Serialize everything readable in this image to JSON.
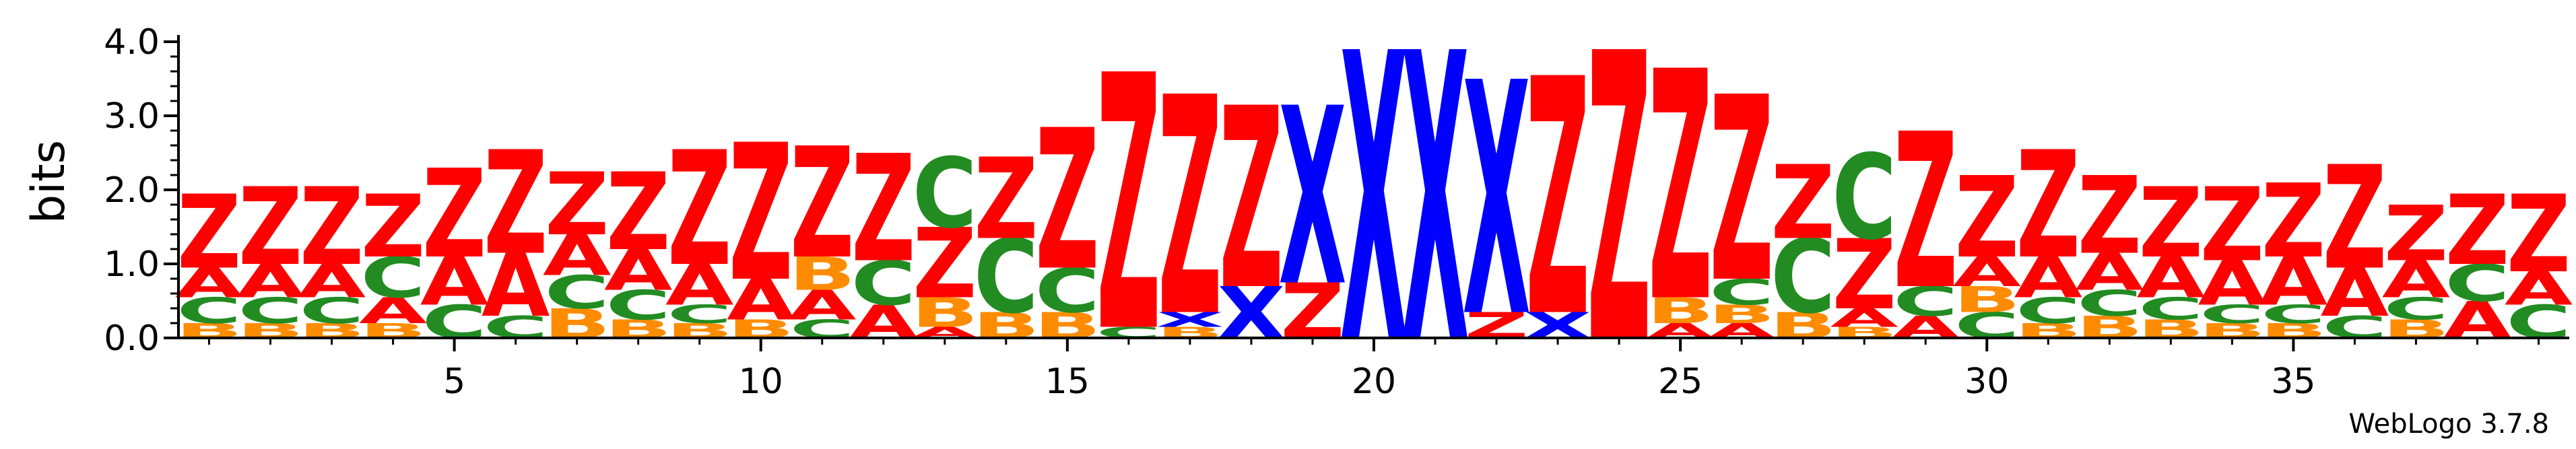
{
  "chart_data": {
    "type": "sequence-logo",
    "ylabel": "bits",
    "ylim": [
      0,
      4.0
    ],
    "ytick_labels": [
      "0.0",
      "1.0",
      "2.0",
      "3.0",
      "4.0"
    ],
    "yticks": [
      0,
      1,
      2,
      3,
      4
    ],
    "xtick_labels": [
      "5",
      "10",
      "15",
      "20",
      "25",
      "30",
      "35"
    ],
    "xticks": [
      5,
      10,
      15,
      20,
      25,
      30,
      35
    ],
    "num_positions": 39,
    "colors": {
      "A": "#ff0000",
      "Z": "#ff0000",
      "C": "#228b22",
      "B": "#ff8c00",
      "X": "#0000ff",
      "G": "#ff8c00",
      "T": "#800080"
    },
    "positions": [
      {
        "pos": 1,
        "stack": [
          [
            "B",
            0.2
          ],
          [
            "C",
            0.35
          ],
          [
            "A",
            0.4
          ],
          [
            "Z",
            1.0
          ]
        ]
      },
      {
        "pos": 2,
        "stack": [
          [
            "B",
            0.2
          ],
          [
            "C",
            0.35
          ],
          [
            "A",
            0.45
          ],
          [
            "Z",
            1.05
          ]
        ]
      },
      {
        "pos": 3,
        "stack": [
          [
            "B",
            0.2
          ],
          [
            "C",
            0.35
          ],
          [
            "A",
            0.45
          ],
          [
            "Z",
            1.05
          ]
        ]
      },
      {
        "pos": 4,
        "stack": [
          [
            "B",
            0.2
          ],
          [
            "A",
            0.35
          ],
          [
            "C",
            0.55
          ],
          [
            "Z",
            0.85
          ]
        ]
      },
      {
        "pos": 5,
        "stack": [
          [
            "C",
            0.45
          ],
          [
            "A",
            0.65
          ],
          [
            "Z",
            1.2
          ]
        ]
      },
      {
        "pos": 6,
        "stack": [
          [
            "C",
            0.3
          ],
          [
            "A",
            0.85
          ],
          [
            "Z",
            1.4
          ]
        ]
      },
      {
        "pos": 7,
        "stack": [
          [
            "B",
            0.4
          ],
          [
            "C",
            0.45
          ],
          [
            "A",
            0.55
          ],
          [
            "Z",
            0.85
          ]
        ]
      },
      {
        "pos": 8,
        "stack": [
          [
            "B",
            0.25
          ],
          [
            "C",
            0.4
          ],
          [
            "A",
            0.55
          ],
          [
            "Z",
            1.05
          ]
        ]
      },
      {
        "pos": 9,
        "stack": [
          [
            "B",
            0.2
          ],
          [
            "C",
            0.25
          ],
          [
            "A",
            0.55
          ],
          [
            "Z",
            1.55
          ]
        ]
      },
      {
        "pos": 10,
        "stack": [
          [
            "B",
            0.25
          ],
          [
            "A",
            0.55
          ],
          [
            "Z",
            1.85
          ]
        ]
      },
      {
        "pos": 11,
        "stack": [
          [
            "C",
            0.25
          ],
          [
            "A",
            0.4
          ],
          [
            "B",
            0.45
          ],
          [
            "Z",
            1.5
          ]
        ]
      },
      {
        "pos": 12,
        "stack": [
          [
            "A",
            0.45
          ],
          [
            "C",
            0.6
          ],
          [
            "Z",
            1.45
          ]
        ]
      },
      {
        "pos": 13,
        "stack": [
          [
            "A",
            0.15
          ],
          [
            "B",
            0.4
          ],
          [
            "Z",
            0.95
          ],
          [
            "C",
            0.95
          ]
        ]
      },
      {
        "pos": 14,
        "stack": [
          [
            "B",
            0.35
          ],
          [
            "C",
            1.0
          ],
          [
            "Z",
            1.1
          ]
        ]
      },
      {
        "pos": 15,
        "stack": [
          [
            "B",
            0.35
          ],
          [
            "C",
            0.6
          ],
          [
            "Z",
            1.9
          ]
        ]
      },
      {
        "pos": 16,
        "stack": [
          [
            "C",
            0.15
          ],
          [
            "Z",
            3.45
          ]
        ]
      },
      {
        "pos": 17,
        "stack": [
          [
            "B",
            0.15
          ],
          [
            "X",
            0.2
          ],
          [
            "Z",
            2.95
          ]
        ]
      },
      {
        "pos": 18,
        "stack": [
          [
            "X",
            0.7
          ],
          [
            "Z",
            2.45
          ]
        ]
      },
      {
        "pos": 19,
        "stack": [
          [
            "Z",
            0.75
          ],
          [
            "X",
            2.4
          ]
        ]
      },
      {
        "pos": 20,
        "stack": [
          [
            "X",
            3.9
          ]
        ]
      },
      {
        "pos": 21,
        "stack": [
          [
            "X",
            3.9
          ]
        ]
      },
      {
        "pos": 22,
        "stack": [
          [
            "Z",
            0.35
          ],
          [
            "X",
            3.15
          ]
        ]
      },
      {
        "pos": 23,
        "stack": [
          [
            "X",
            0.35
          ],
          [
            "Z",
            3.2
          ]
        ]
      },
      {
        "pos": 24,
        "stack": [
          [
            "Z",
            3.9
          ]
        ]
      },
      {
        "pos": 25,
        "stack": [
          [
            "A",
            0.2
          ],
          [
            "B",
            0.35
          ],
          [
            "Z",
            3.1
          ]
        ]
      },
      {
        "pos": 26,
        "stack": [
          [
            "A",
            0.2
          ],
          [
            "B",
            0.25
          ],
          [
            "C",
            0.35
          ],
          [
            "Z",
            2.5
          ]
        ]
      },
      {
        "pos": 27,
        "stack": [
          [
            "B",
            0.35
          ],
          [
            "C",
            1.0
          ],
          [
            "Z",
            1.0
          ]
        ]
      },
      {
        "pos": 28,
        "stack": [
          [
            "B",
            0.15
          ],
          [
            "A",
            0.25
          ],
          [
            "Z",
            0.95
          ],
          [
            "C",
            1.15
          ]
        ]
      },
      {
        "pos": 29,
        "stack": [
          [
            "A",
            0.3
          ],
          [
            "C",
            0.4
          ],
          [
            "Z",
            2.1
          ]
        ]
      },
      {
        "pos": 30,
        "stack": [
          [
            "C",
            0.35
          ],
          [
            "B",
            0.35
          ],
          [
            "A",
            0.4
          ],
          [
            "Z",
            1.1
          ]
        ]
      },
      {
        "pos": 31,
        "stack": [
          [
            "B",
            0.2
          ],
          [
            "C",
            0.35
          ],
          [
            "A",
            0.55
          ],
          [
            "Z",
            1.45
          ]
        ]
      },
      {
        "pos": 32,
        "stack": [
          [
            "B",
            0.3
          ],
          [
            "C",
            0.35
          ],
          [
            "A",
            0.5
          ],
          [
            "Z",
            1.05
          ]
        ]
      },
      {
        "pos": 33,
        "stack": [
          [
            "B",
            0.25
          ],
          [
            "C",
            0.3
          ],
          [
            "A",
            0.55
          ],
          [
            "Z",
            0.95
          ]
        ]
      },
      {
        "pos": 34,
        "stack": [
          [
            "B",
            0.2
          ],
          [
            "C",
            0.25
          ],
          [
            "A",
            0.6
          ],
          [
            "Z",
            1.0
          ]
        ]
      },
      {
        "pos": 35,
        "stack": [
          [
            "B",
            0.2
          ],
          [
            "C",
            0.25
          ],
          [
            "A",
            0.65
          ],
          [
            "Z",
            1.0
          ]
        ]
      },
      {
        "pos": 36,
        "stack": [
          [
            "C",
            0.3
          ],
          [
            "A",
            0.65
          ],
          [
            "Z",
            1.4
          ]
        ]
      },
      {
        "pos": 37,
        "stack": [
          [
            "B",
            0.25
          ],
          [
            "C",
            0.3
          ],
          [
            "A",
            0.5
          ],
          [
            "Z",
            0.75
          ]
        ]
      },
      {
        "pos": 38,
        "stack": [
          [
            "A",
            0.5
          ],
          [
            "C",
            0.5
          ],
          [
            "Z",
            0.95
          ]
        ]
      },
      {
        "pos": 39,
        "stack": [
          [
            "C",
            0.45
          ],
          [
            "A",
            0.45
          ],
          [
            "Z",
            1.05
          ]
        ]
      }
    ]
  },
  "credit": "WebLogo 3.7.8"
}
